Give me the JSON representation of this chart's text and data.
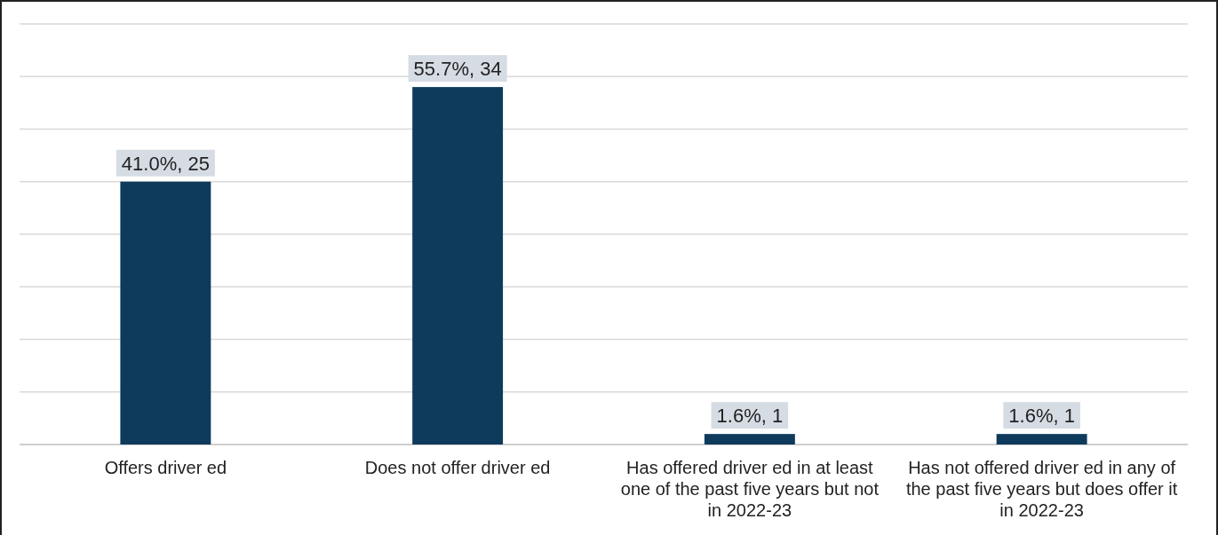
{
  "chart_data": {
    "type": "bar",
    "categories": [
      "Offers driver ed",
      "Does not offer driver ed",
      "Has offered driver ed in at least one of the past five years but not in 2022-23",
      "Has not offered driver ed in any of the past five years but does offer it in 2022-23"
    ],
    "values": [
      25,
      34,
      1,
      1
    ],
    "value_labels": [
      "41.0%, 25",
      "55.7%, 34",
      "1.6%, 1",
      "1.6%, 1"
    ],
    "color": "#0e3a5c",
    "ylim": [
      0,
      40
    ],
    "yticks": [
      {
        "value": 0,
        "label": null
      },
      {
        "value": 5,
        "label": null
      },
      {
        "value": 10,
        "label": null
      },
      {
        "value": 15,
        "label": null
      },
      {
        "value": 20,
        "label": null
      },
      {
        "value": 25,
        "label": null
      },
      {
        "value": 30,
        "label": null
      },
      {
        "value": 35,
        "label": null
      },
      {
        "value": 40,
        "label": null
      }
    ],
    "grid": "y",
    "tick_labels": "x"
  }
}
